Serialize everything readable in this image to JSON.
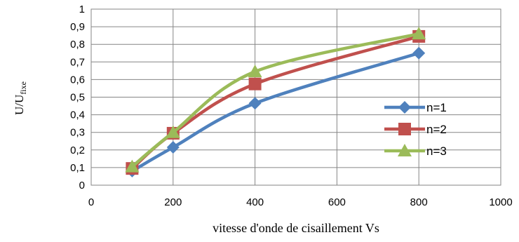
{
  "chart_data": {
    "type": "line",
    "title": "",
    "xlabel": "vitesse d'onde de cisaillement Vs",
    "ylabel_main": "U/U",
    "ylabel_sub": "fixe",
    "xlim": [
      0,
      1000
    ],
    "ylim": [
      0,
      1
    ],
    "x_ticks": [
      0,
      200,
      400,
      600,
      800,
      1000
    ],
    "x_tick_labels": [
      "0",
      "200",
      "400",
      "600",
      "800",
      "1000"
    ],
    "y_ticks": [
      0,
      0.1,
      0.2,
      0.3,
      0.4,
      0.5,
      0.6,
      0.7,
      0.8,
      0.9,
      1
    ],
    "y_tick_labels": [
      "0",
      "0,1",
      "0,2",
      "0,3",
      "0,4",
      "0,5",
      "0,6",
      "0,7",
      "0,8",
      "0,9",
      "1"
    ],
    "grid": true,
    "legend_position": "right",
    "x": [
      100,
      200,
      400,
      800
    ],
    "series": [
      {
        "name": "n=1",
        "values": [
          0.08,
          0.215,
          0.465,
          0.75
        ],
        "color": "#4f81bd",
        "marker": "diamond"
      },
      {
        "name": "n=2",
        "values": [
          0.095,
          0.295,
          0.575,
          0.845
        ],
        "color": "#c0504d",
        "marker": "square"
      },
      {
        "name": "n=3",
        "values": [
          0.105,
          0.3,
          0.645,
          0.86
        ],
        "color": "#9bbb59",
        "marker": "triangle"
      }
    ]
  }
}
